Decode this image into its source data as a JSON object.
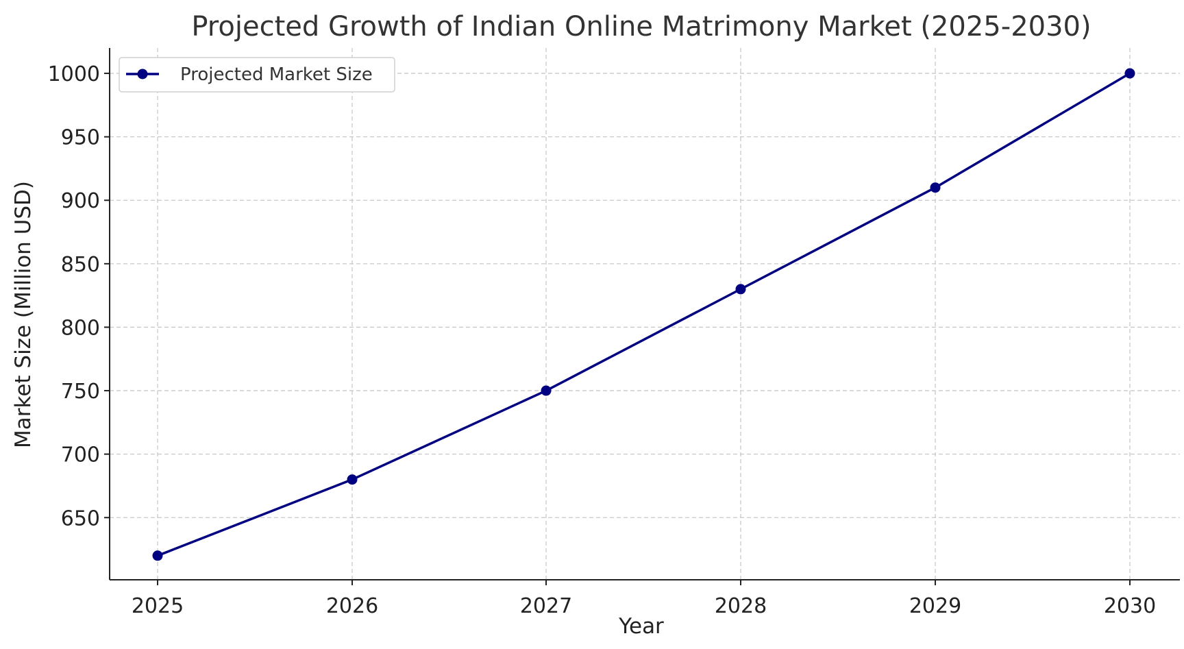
{
  "chart_data": {
    "type": "line",
    "title": "Projected Growth of Indian Online Matrimony Market (2025-2030)",
    "xlabel": "Year",
    "ylabel": "Market Size (Million USD)",
    "x": [
      "2025",
      "2026",
      "2027",
      "2028",
      "2029",
      "2030"
    ],
    "series": [
      {
        "name": "Projected Market Size",
        "values": [
          620,
          680,
          750,
          830,
          910,
          1000
        ],
        "color": "#000080",
        "marker": "circle"
      }
    ],
    "ylim": [
      601,
      1020
    ],
    "yticks": [
      650,
      700,
      750,
      800,
      850,
      900,
      950,
      1000
    ],
    "grid": true,
    "legend_position": "top-left"
  }
}
